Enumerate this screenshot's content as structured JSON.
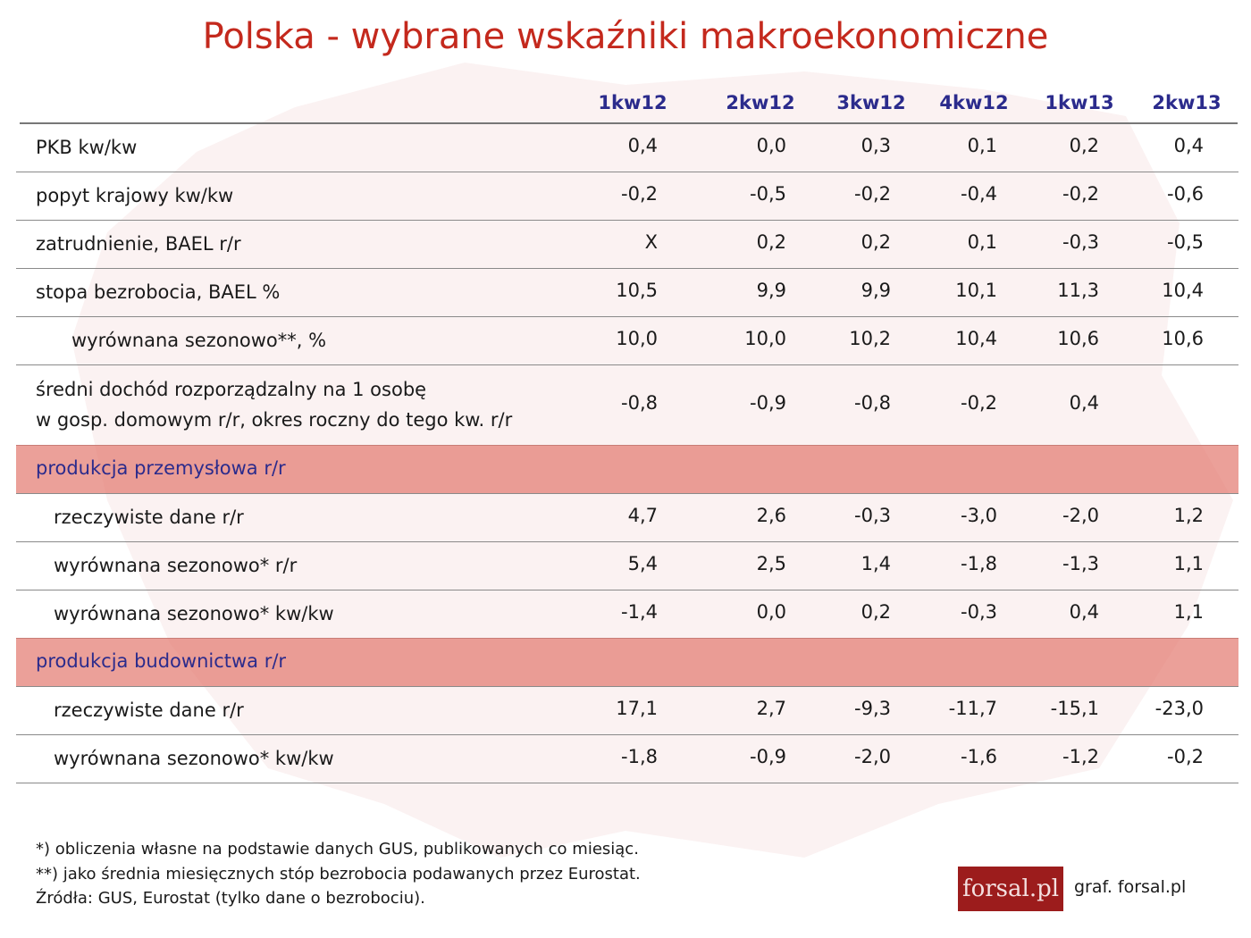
{
  "title": "Polska - wybrane wskaźniki makroekonomiczne",
  "table": {
    "columns": [
      "1kw12",
      "2kw12",
      "3kw12",
      "4kw12",
      "1kw13",
      "2kw13"
    ],
    "groups": [
      {
        "rows": [
          {
            "label": [
              "PKB kw/kw"
            ],
            "indent": 0,
            "values": [
              "0,4",
              "0,0",
              "0,3",
              "0,1",
              "0,2",
              "0,4"
            ]
          },
          {
            "label": [
              "popyt krajowy kw/kw"
            ],
            "indent": 0,
            "values": [
              "-0,2",
              "-0,5",
              "-0,2",
              "-0,4",
              "-0,2",
              "-0,6"
            ]
          },
          {
            "label": [
              "zatrudnienie, BAEL r/r"
            ],
            "indent": 0,
            "values": [
              "X",
              "0,2",
              "0,2",
              "0,1",
              "-0,3",
              "-0,5"
            ]
          },
          {
            "label": [
              "stopa bezrobocia, BAEL %"
            ],
            "indent": 0,
            "values": [
              "10,5",
              "9,9",
              "9,9",
              "10,1",
              "11,3",
              "10,4"
            ]
          },
          {
            "label": [
              "wyrównana sezonowo**, %"
            ],
            "indent": 2,
            "values": [
              "10,0",
              "10,0",
              "10,2",
              "10,4",
              "10,6",
              "10,6"
            ]
          },
          {
            "label": [
              "średni dochód rozporządzalny na 1 osobę",
              "w gosp. domowym r/r, okres roczny do tego kw. r/r"
            ],
            "indent": 0,
            "values": [
              "-0,8",
              "-0,9",
              "-0,8",
              "-0,2",
              "0,4",
              null
            ]
          }
        ]
      },
      {
        "title": "produkcja przemysłowa r/r",
        "rows": [
          {
            "label": [
              "rzeczywiste dane r/r"
            ],
            "indent": 1,
            "values": [
              "4,7",
              "2,6",
              "-0,3",
              "-3,0",
              "-2,0",
              "1,2"
            ]
          },
          {
            "label": [
              "wyrównana sezonowo* r/r"
            ],
            "indent": 1,
            "values": [
              "5,4",
              "2,5",
              "1,4",
              "-1,8",
              "-1,3",
              "1,1"
            ]
          },
          {
            "label": [
              "wyrównana sezonowo* kw/kw"
            ],
            "indent": 1,
            "values": [
              "-1,4",
              "0,0",
              "0,2",
              "-0,3",
              "0,4",
              "1,1"
            ]
          }
        ]
      },
      {
        "title": "produkcja budownictwa  r/r",
        "rows": [
          {
            "label": [
              "rzeczywiste dane r/r"
            ],
            "indent": 1,
            "values": [
              "17,1",
              "2,7",
              "-9,3",
              "-11,7",
              "-15,1",
              "-23,0"
            ]
          },
          {
            "label": [
              "wyrównana sezonowo* kw/kw"
            ],
            "indent": 1,
            "values": [
              "-1,8",
              "-0,9",
              "-2,0",
              "-1,6",
              "-1,2",
              "-0,2"
            ]
          }
        ]
      }
    ]
  },
  "footnotes": [
    "*) obliczenia własne na podstawie danych GUS, publikowanych co miesiąc.",
    "**) jako średnia miesięcznych stóp bezrobocia podawanych przez Eurostat.",
    "Źródła: GUS, Eurostat (tylko dane o bezrobociu)."
  ],
  "logo": "forsal.pl",
  "credit": "graf. forsal.pl"
}
